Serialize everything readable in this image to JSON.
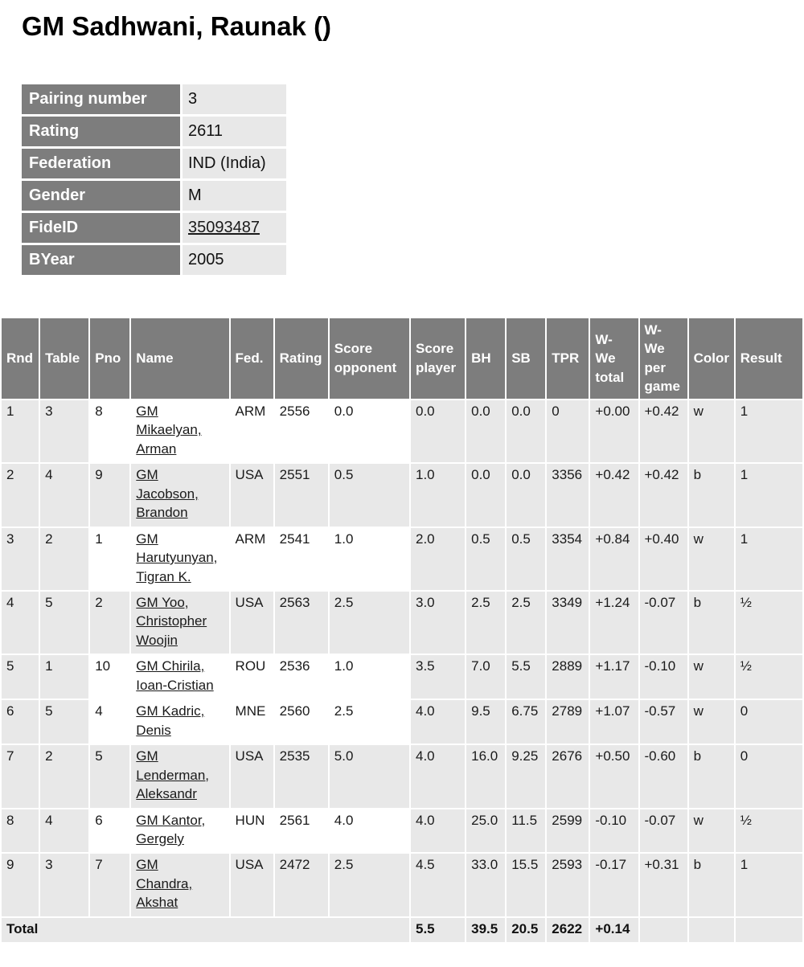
{
  "colors": {
    "header_bg": "#7d7d7d",
    "cell_bg": "#e8e8e8",
    "header_text": "#ffffff"
  },
  "page": {
    "title": "GM Sadhwani, Raunak ()"
  },
  "player_info": {
    "rows": [
      {
        "label": "Pairing number",
        "value": "3"
      },
      {
        "label": "Rating",
        "value": "2611"
      },
      {
        "label": "Federation",
        "value": "IND (India)"
      },
      {
        "label": "Gender",
        "value": "M"
      },
      {
        "label": "FideID",
        "value": "35093487"
      },
      {
        "label": "BYear",
        "value": "2005"
      }
    ]
  },
  "results_table": {
    "headers": [
      {
        "key": "rnd",
        "label": "Rnd"
      },
      {
        "key": "table",
        "label": "Table"
      },
      {
        "key": "pno",
        "label": "Pno"
      },
      {
        "key": "name",
        "label": "Name"
      },
      {
        "key": "fed",
        "label": "Fed."
      },
      {
        "key": "rating",
        "label": "Rating"
      },
      {
        "key": "score_opponent",
        "label": "Score\nopponent"
      },
      {
        "key": "score_player",
        "label": "Score\nplayer"
      },
      {
        "key": "bh",
        "label": "BH"
      },
      {
        "key": "sb",
        "label": "SB"
      },
      {
        "key": "tpr",
        "label": "TPR"
      },
      {
        "key": "wwe_total",
        "label": "W-\nWe\ntotal"
      },
      {
        "key": "wwe_per_game",
        "label": "W-\nWe\nper\ngame"
      },
      {
        "key": "color",
        "label": "Color"
      },
      {
        "key": "result",
        "label": "Result"
      }
    ],
    "rows": [
      {
        "rnd": "1",
        "table": "3",
        "pno": "8",
        "name": "GM\nMikaelyan,\nArman",
        "fed": "ARM",
        "rating": "2556",
        "score_opponent": "0.0",
        "score_player": "0.0",
        "bh": "0.0",
        "sb": "0.0",
        "tpr": "0",
        "wwe_total": "+0.00",
        "wwe_per_game": "+0.42",
        "color": "w",
        "result": "1"
      },
      {
        "rnd": "2",
        "table": "4",
        "pno": "9",
        "name": "GM\nJacobson,\nBrandon",
        "fed": "USA",
        "rating": "2551",
        "score_opponent": "0.5",
        "score_player": "1.0",
        "bh": "0.0",
        "sb": "0.0",
        "tpr": "3356",
        "wwe_total": "+0.42",
        "wwe_per_game": "+0.42",
        "color": "b",
        "result": "1"
      },
      {
        "rnd": "3",
        "table": "2",
        "pno": "1",
        "name": "GM\nHarutyunyan,\nTigran K.",
        "fed": "ARM",
        "rating": "2541",
        "score_opponent": "1.0",
        "score_player": "2.0",
        "bh": "0.5",
        "sb": "0.5",
        "tpr": "3354",
        "wwe_total": "+0.84",
        "wwe_per_game": "+0.40",
        "color": "w",
        "result": "1"
      },
      {
        "rnd": "4",
        "table": "5",
        "pno": "2",
        "name": "GM Yoo,\nChristopher\nWoojin",
        "fed": "USA",
        "rating": "2563",
        "score_opponent": "2.5",
        "score_player": "3.0",
        "bh": "2.5",
        "sb": "2.5",
        "tpr": "3349",
        "wwe_total": "+1.24",
        "wwe_per_game": "-0.07",
        "color": "b",
        "result": "½"
      },
      {
        "rnd": "5",
        "table": "1",
        "pno": "10",
        "name": "GM Chirila,\nIoan-Cristian",
        "fed": "ROU",
        "rating": "2536",
        "score_opponent": "1.0",
        "score_player": "3.5",
        "bh": "7.0",
        "sb": "5.5",
        "tpr": "2889",
        "wwe_total": "+1.17",
        "wwe_per_game": "-0.10",
        "color": "w",
        "result": "½"
      },
      {
        "rnd": "6",
        "table": "5",
        "pno": "4",
        "name": "GM Kadric,\nDenis",
        "fed": "MNE",
        "rating": "2560",
        "score_opponent": "2.5",
        "score_player": "4.0",
        "bh": "9.5",
        "sb": "6.75",
        "tpr": "2789",
        "wwe_total": "+1.07",
        "wwe_per_game": "-0.57",
        "color": "w",
        "result": "0"
      },
      {
        "rnd": "7",
        "table": "2",
        "pno": "5",
        "name": "GM\nLenderman,\nAleksandr",
        "fed": "USA",
        "rating": "2535",
        "score_opponent": "5.0",
        "score_player": "4.0",
        "bh": "16.0",
        "sb": "9.25",
        "tpr": "2676",
        "wwe_total": "+0.50",
        "wwe_per_game": "-0.60",
        "color": "b",
        "result": "0"
      },
      {
        "rnd": "8",
        "table": "4",
        "pno": "6",
        "name": "GM Kantor,\nGergely",
        "fed": "HUN",
        "rating": "2561",
        "score_opponent": "4.0",
        "score_player": "4.0",
        "bh": "25.0",
        "sb": "11.5",
        "tpr": "2599",
        "wwe_total": "-0.10",
        "wwe_per_game": "-0.07",
        "color": "w",
        "result": "½"
      },
      {
        "rnd": "9",
        "table": "3",
        "pno": "7",
        "name": "GM\nChandra,\nAkshat",
        "fed": "USA",
        "rating": "2472",
        "score_opponent": "2.5",
        "score_player": "4.5",
        "bh": "33.0",
        "sb": "15.5",
        "tpr": "2593",
        "wwe_total": "-0.17",
        "wwe_per_game": "+0.31",
        "color": "b",
        "result": "1"
      }
    ],
    "total": {
      "label": "Total",
      "score_player": "5.5",
      "bh": "39.5",
      "sb": "20.5",
      "tpr": "2622",
      "wwe_total": "+0.14"
    }
  }
}
